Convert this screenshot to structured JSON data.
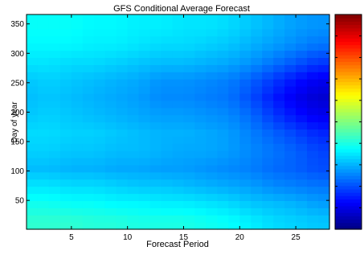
{
  "figure": {
    "background": "#ffffff"
  },
  "chart_data": {
    "type": "heatmap",
    "title": "GFS Conditional Average Forecast",
    "xlabel": "Forecast Period",
    "ylabel": "Day of year",
    "xlim": [
      1,
      28
    ],
    "ylim": [
      1,
      366
    ],
    "x_ticks": [
      5,
      10,
      15,
      20,
      25
    ],
    "y_ticks": [
      50,
      100,
      150,
      200,
      250,
      300,
      350
    ],
    "colormap": "jet",
    "colorbar": true,
    "colorbar_ticks_labeled": false,
    "x": [
      1,
      3,
      5,
      7,
      9,
      11,
      13,
      15,
      17,
      19,
      21,
      23,
      25,
      27
    ],
    "y": [
      15,
      45,
      75,
      105,
      135,
      165,
      195,
      225,
      255,
      285,
      315,
      345
    ],
    "z": [
      [
        0.42,
        0.42,
        0.42,
        0.41,
        0.41,
        0.4,
        0.4,
        0.4,
        0.39,
        0.38,
        0.36,
        0.34,
        0.33,
        0.32
      ],
      [
        0.39,
        0.39,
        0.38,
        0.38,
        0.37,
        0.37,
        0.36,
        0.36,
        0.35,
        0.34,
        0.32,
        0.31,
        0.3,
        0.28
      ],
      [
        0.35,
        0.35,
        0.34,
        0.34,
        0.33,
        0.32,
        0.32,
        0.31,
        0.3,
        0.29,
        0.28,
        0.26,
        0.25,
        0.24
      ],
      [
        0.31,
        0.31,
        0.3,
        0.3,
        0.29,
        0.29,
        0.28,
        0.28,
        0.27,
        0.26,
        0.25,
        0.23,
        0.22,
        0.2
      ],
      [
        0.33,
        0.33,
        0.32,
        0.32,
        0.31,
        0.31,
        0.3,
        0.29,
        0.29,
        0.28,
        0.26,
        0.24,
        0.22,
        0.19
      ],
      [
        0.34,
        0.34,
        0.33,
        0.33,
        0.32,
        0.31,
        0.3,
        0.3,
        0.29,
        0.28,
        0.25,
        0.22,
        0.19,
        0.16
      ],
      [
        0.32,
        0.33,
        0.32,
        0.31,
        0.3,
        0.29,
        0.28,
        0.28,
        0.27,
        0.26,
        0.23,
        0.18,
        0.14,
        0.11
      ],
      [
        0.31,
        0.32,
        0.31,
        0.3,
        0.29,
        0.28,
        0.26,
        0.26,
        0.25,
        0.24,
        0.2,
        0.15,
        0.11,
        0.08
      ],
      [
        0.32,
        0.33,
        0.32,
        0.31,
        0.3,
        0.29,
        0.27,
        0.27,
        0.26,
        0.25,
        0.22,
        0.18,
        0.14,
        0.11
      ],
      [
        0.35,
        0.35,
        0.34,
        0.34,
        0.33,
        0.32,
        0.31,
        0.31,
        0.3,
        0.29,
        0.27,
        0.24,
        0.21,
        0.18
      ],
      [
        0.37,
        0.37,
        0.37,
        0.36,
        0.36,
        0.35,
        0.34,
        0.34,
        0.33,
        0.32,
        0.3,
        0.28,
        0.26,
        0.24
      ],
      [
        0.38,
        0.38,
        0.38,
        0.37,
        0.37,
        0.36,
        0.36,
        0.35,
        0.35,
        0.34,
        0.32,
        0.3,
        0.28,
        0.27
      ]
    ]
  }
}
